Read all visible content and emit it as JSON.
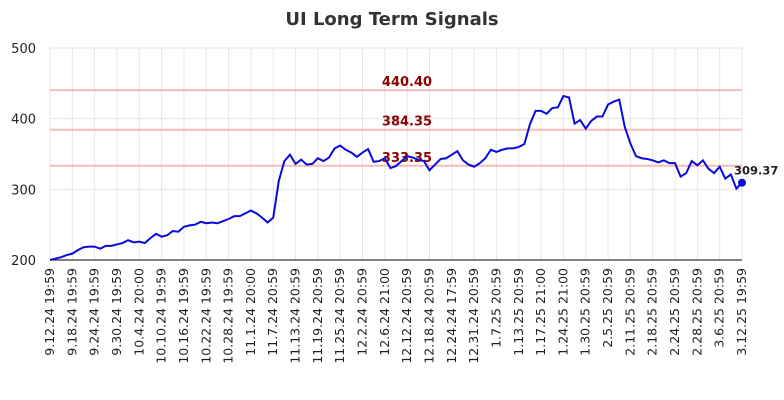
{
  "chart_data": {
    "type": "line",
    "title": "UI Long Term Signals",
    "categories": [
      "9.12.24 19:59",
      null,
      null,
      null,
      "9.18.24 19:59",
      null,
      null,
      null,
      "9.24.24 19:59",
      null,
      null,
      null,
      "9.30.24 19:59",
      null,
      null,
      null,
      "10.4.24 20:00",
      null,
      null,
      null,
      "10.10.24 19:59",
      null,
      null,
      null,
      "10.16.24 19:59",
      null,
      null,
      null,
      "10.22.24 19:59",
      null,
      null,
      null,
      "10.28.24 19:59",
      null,
      null,
      null,
      "11.1.24 20:00",
      null,
      null,
      null,
      "11.7.24 20:59",
      null,
      null,
      null,
      "11.13.24 20:59",
      null,
      null,
      null,
      "11.19.24 20:59",
      null,
      null,
      null,
      "11.25.24 20:59",
      null,
      null,
      null,
      "12.2.24 20:59",
      null,
      null,
      null,
      "12.6.24 21:00",
      null,
      null,
      null,
      "12.12.24 20:59",
      null,
      null,
      null,
      "12.18.24 20:59",
      null,
      null,
      null,
      "12.24.24 17:59",
      null,
      null,
      null,
      "12.31.24 20:59",
      null,
      null,
      null,
      "1.7.25 20:59",
      null,
      null,
      null,
      "1.13.25 20:59",
      null,
      null,
      null,
      "1.17.25 21:00",
      null,
      null,
      null,
      "1.24.25 21:00",
      null,
      null,
      null,
      "1.30.25 20:59",
      null,
      null,
      null,
      "2.5.25 20:59",
      null,
      null,
      null,
      "2.11.25 20:59",
      null,
      null,
      null,
      "2.18.25 20:59",
      null,
      null,
      null,
      "2.24.25 20:59",
      null,
      null,
      null,
      "2.28.25 20:59",
      null,
      null,
      null,
      "3.6.25 20:59",
      null,
      null,
      null,
      "3.12.25 19:59"
    ],
    "series": [
      {
        "name": "UI",
        "color": "#0a0adc",
        "values": [
          200,
          202,
          204,
          207,
          209,
          214,
          218,
          219,
          219,
          216,
          220,
          220,
          222,
          224,
          228,
          225,
          226,
          224,
          231,
          237,
          233,
          235,
          241,
          240,
          247,
          249,
          250,
          254,
          252,
          253,
          252,
          255,
          258,
          262,
          262,
          266,
          270,
          266,
          260,
          253,
          260,
          312,
          340,
          349,
          336,
          342,
          335,
          336,
          344,
          340,
          345,
          358,
          362,
          356,
          352,
          346,
          352,
          357,
          339,
          340,
          344,
          330,
          333,
          340,
          347,
          345,
          342,
          340,
          327,
          335,
          343,
          344,
          349,
          354,
          341,
          335,
          332,
          337,
          344,
          356,
          353,
          356,
          358,
          358,
          360,
          364,
          392,
          411,
          411,
          407,
          415,
          416,
          432,
          430,
          393,
          398,
          386,
          397,
          403,
          403,
          420,
          424,
          427,
          388,
          365,
          347,
          344,
          343,
          341,
          338,
          341,
          337,
          337,
          318,
          323,
          340,
          334,
          341,
          329,
          323,
          332,
          315,
          321,
          301,
          309.37
        ]
      }
    ],
    "hlines": [
      {
        "value": 440.4,
        "label": "440.40"
      },
      {
        "value": 384.35,
        "label": "384.35"
      },
      {
        "value": 333.35,
        "label": "333.35"
      }
    ],
    "hline_color": "#f6bcbc",
    "hline_label_color": "#8b0000",
    "ylim": [
      200,
      500
    ],
    "yticks": [
      200,
      300,
      400,
      500
    ],
    "grid": true
  }
}
